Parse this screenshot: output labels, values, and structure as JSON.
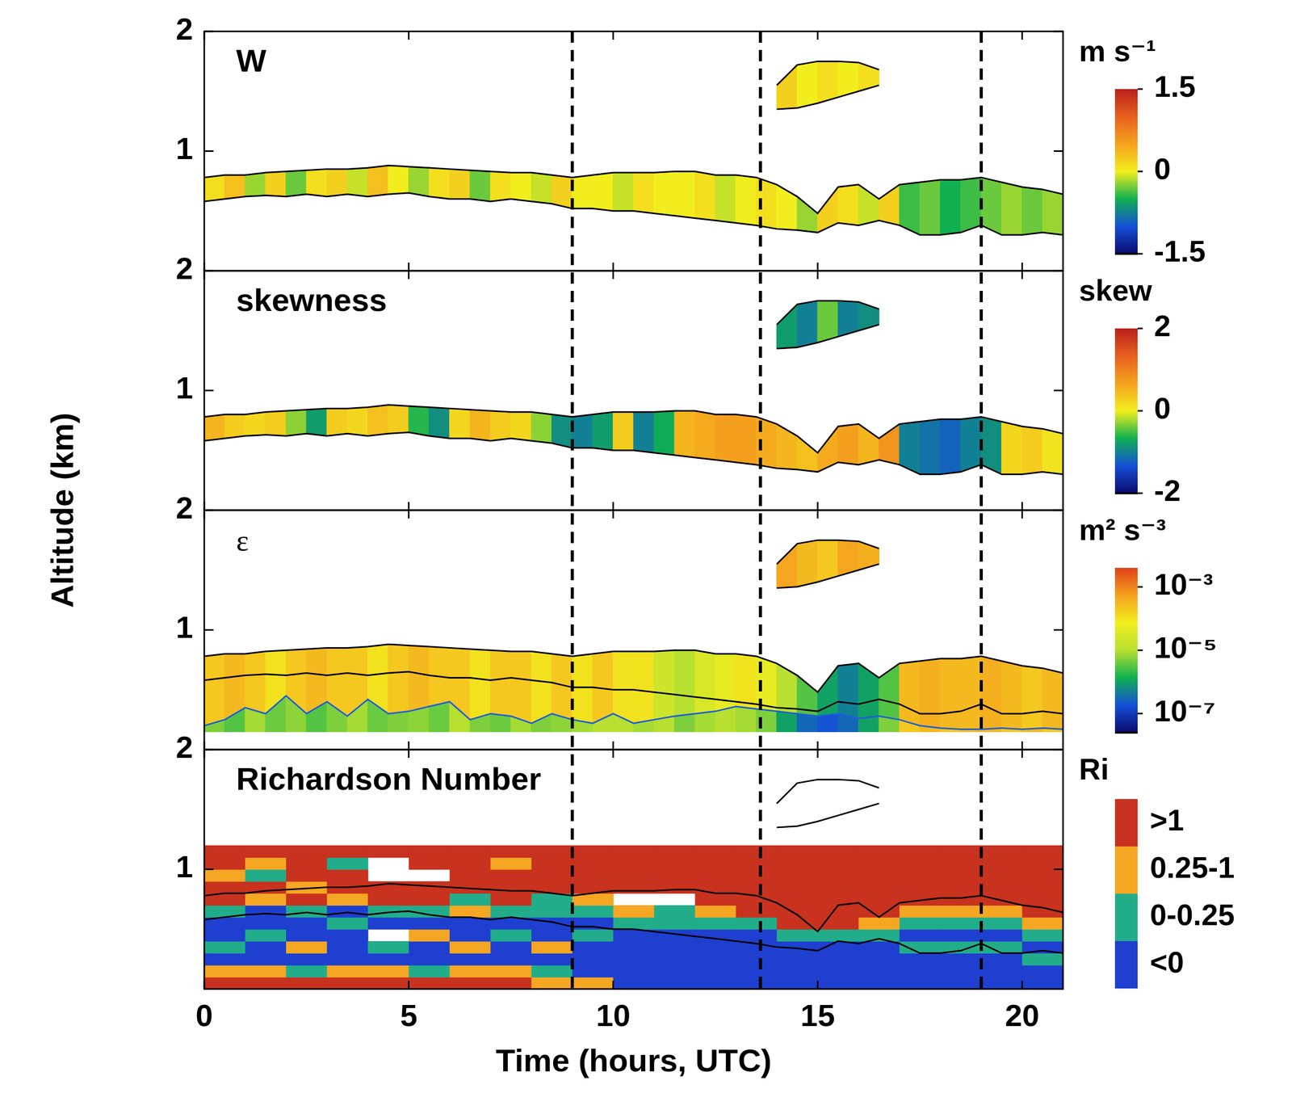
{
  "chart_data": {
    "type": "heatmap",
    "xlabel": "Time (hours, UTC)",
    "ylabel": "Altitude (km)",
    "xlim": [
      0,
      21
    ],
    "xticks": [
      0,
      5,
      10,
      15,
      20
    ],
    "ylim": [
      0,
      2
    ],
    "yticks": [
      1,
      2
    ],
    "vertical_lines": [
      9,
      13.6,
      19
    ],
    "x": [
      0,
      0.5,
      1,
      1.5,
      2,
      2.5,
      3,
      3.5,
      4,
      4.5,
      5,
      5.5,
      6,
      6.5,
      7,
      7.5,
      8,
      8.5,
      9,
      9.5,
      10,
      10.5,
      11,
      11.5,
      12,
      12.5,
      13,
      13.5,
      14,
      14.5,
      15,
      15.5,
      16,
      16.5,
      17,
      17.5,
      18,
      18.5,
      19,
      19.5,
      20,
      20.5,
      21
    ],
    "cloud_top": [
      0.78,
      0.8,
      0.8,
      0.82,
      0.83,
      0.84,
      0.85,
      0.85,
      0.86,
      0.88,
      0.87,
      0.86,
      0.85,
      0.84,
      0.83,
      0.82,
      0.82,
      0.8,
      0.78,
      0.8,
      0.82,
      0.82,
      0.82,
      0.83,
      0.83,
      0.8,
      0.8,
      0.78,
      0.72,
      0.62,
      0.48,
      0.7,
      0.72,
      0.6,
      0.72,
      0.74,
      0.76,
      0.76,
      0.78,
      0.74,
      0.7,
      0.68,
      0.64
    ],
    "cloud_base": [
      0.58,
      0.6,
      0.62,
      0.63,
      0.62,
      0.64,
      0.62,
      0.64,
      0.62,
      0.64,
      0.65,
      0.62,
      0.6,
      0.6,
      0.58,
      0.6,
      0.58,
      0.56,
      0.52,
      0.52,
      0.5,
      0.5,
      0.48,
      0.46,
      0.44,
      0.42,
      0.4,
      0.38,
      0.35,
      0.34,
      0.32,
      0.4,
      0.38,
      0.42,
      0.38,
      0.3,
      0.3,
      0.32,
      0.38,
      0.3,
      0.3,
      0.32,
      0.3
    ],
    "upper_cloud": {
      "x": [
        14,
        14.5,
        15,
        15.5,
        16,
        16.5
      ],
      "top": [
        1.55,
        1.72,
        1.75,
        1.75,
        1.74,
        1.68
      ],
      "base": [
        1.35,
        1.36,
        1.4,
        1.45,
        1.5,
        1.55
      ]
    },
    "panels": [
      {
        "title": "W",
        "type": "band",
        "colorbar": {
          "title": "m s⁻¹",
          "range": [
            -1.5,
            1.5
          ],
          "ticks": [
            1.5,
            0,
            -1.5
          ],
          "colors": [
            "#0a0a6e",
            "#1450d8",
            "#10b050",
            "#f2ee1e",
            "#f5a21e",
            "#e8601e",
            "#b8201a"
          ]
        },
        "values": [
          0.1,
          0.3,
          -0.2,
          0.2,
          -0.3,
          0.1,
          0.2,
          -0.1,
          0.3,
          0,
          -0.2,
          0.1,
          0.2,
          -0.3,
          0.1,
          0,
          -0.1,
          0.2,
          0,
          0,
          -0.1,
          0.1,
          0,
          0,
          0.1,
          -0.1,
          0,
          0.1,
          0,
          -0.2,
          0.2,
          0.1,
          -0.1,
          0.2,
          -0.4,
          -0.3,
          -0.5,
          -0.4,
          -0.3,
          -0.2,
          -0.3,
          -0.2
        ],
        "cloud_values": [
          0.2,
          0,
          0.1,
          0,
          0.1
        ]
      },
      {
        "title": "skewness",
        "type": "band",
        "colorbar": {
          "title": "skew",
          "range": [
            -2,
            2
          ],
          "ticks": [
            2,
            0,
            -2
          ],
          "colors": [
            "#0a0a6e",
            "#1450d8",
            "#10b050",
            "#f2ee1e",
            "#f5a21e",
            "#e8601e",
            "#b8201a"
          ]
        },
        "values": [
          0.5,
          0.3,
          0.2,
          0.3,
          -0.3,
          -0.8,
          0.3,
          0.2,
          0.4,
          0.3,
          -0.6,
          -0.9,
          0.2,
          0.5,
          0.3,
          0.2,
          -0.3,
          -0.9,
          -1,
          -0.8,
          0.3,
          -1,
          -0.7,
          0.5,
          0.6,
          0.7,
          0.7,
          0.6,
          0.5,
          0.4,
          0.6,
          0.7,
          0.5,
          0.8,
          -1,
          -1.1,
          -1.2,
          -1,
          -0.9,
          0.2,
          0.3,
          0.1
        ],
        "cloud_values": [
          -0.8,
          -1,
          -0.4,
          -1,
          -0.9
        ]
      },
      {
        "title": "ε",
        "type": "band",
        "colorbar": {
          "title": "m² s⁻³",
          "log": true,
          "range": [
            2.5e-08,
            0.004
          ],
          "ticks": [
            {
              "value": 0.001,
              "label": "10⁻³"
            },
            {
              "value": 1e-05,
              "label": "10⁻⁵"
            },
            {
              "value": 1e-07,
              "label": "10⁻⁷"
            }
          ],
          "colors": [
            "#0a0a6e",
            "#1450d8",
            "#10b050",
            "#b8e030",
            "#f2ee1e",
            "#f5a21e",
            "#e0401a"
          ]
        },
        "values": [
          0.0002,
          0.0003,
          0.0002,
          0.0001,
          0.0002,
          0.0003,
          0.0002,
          0.0002,
          0.0001,
          0.0002,
          0.0003,
          0.0002,
          0.0002,
          0.0001,
          0.0002,
          0.0002,
          0.0001,
          0.0002,
          0.0001,
          0.0002,
          0.0001,
          0.0001,
          2e-05,
          1e-05,
          3e-05,
          5e-05,
          0.0001,
          5e-05,
          1e-05,
          3e-06,
          1e-06,
          5e-07,
          1e-06,
          3e-06,
          0.0003,
          0.0004,
          0.0003,
          0.0003,
          0.0004,
          0.0003,
          0.0002,
          0.0003
        ],
        "lower_values": [
          5e-06,
          3e-06,
          8e-06,
          4e-06,
          6e-06,
          3e-06,
          5e-06,
          8e-06,
          4e-06,
          5e-06,
          6e-06,
          4e-06,
          1e-05,
          5e-06,
          4e-06,
          8e-06,
          5e-06,
          6e-06,
          8e-06,
          1e-05,
          1e-05,
          8e-06,
          1e-05,
          5e-06,
          8e-06,
          1e-05,
          8e-06,
          5e-06,
          1e-06,
          3e-07,
          2e-07,
          3e-07,
          1e-06,
          5e-06,
          0.0002,
          0.0003,
          0.0002,
          0.0003,
          0.0003,
          0.0002,
          0.0003,
          0.0002
        ],
        "line": [
          0.2,
          0.25,
          0.35,
          0.3,
          0.45,
          0.3,
          0.4,
          0.28,
          0.42,
          0.3,
          0.32,
          0.36,
          0.4,
          0.25,
          0.3,
          0.28,
          0.22,
          0.3,
          0.25,
          0.22,
          0.3,
          0.22,
          0.25,
          0.28,
          0.3,
          0.32,
          0.36,
          0.34,
          0.32,
          0.3,
          0.28,
          0.3,
          0.26,
          0.28,
          0.25,
          0.2,
          0.18,
          0.17,
          0.17,
          0.18,
          0.17,
          0.18,
          0.17
        ],
        "lidar_bottom": 0.15,
        "cloud_values": [
          0.0005,
          0.0003,
          0.0002,
          0.0005,
          0.0004
        ]
      },
      {
        "title": "Richardson Number",
        "type": "heatmap",
        "colorbar": {
          "title": "Ri",
          "labels": [
            ">1",
            "0.25-1",
            "0-0.25",
            "<0"
          ],
          "bounds": [
            1,
            0.25,
            0
          ],
          "colors": [
            "#c8321e",
            "#f5a623",
            "#22ad8a",
            "#1e3fd0"
          ]
        },
        "x_bins": [
          0,
          1,
          2,
          3,
          4,
          5,
          6,
          7,
          8,
          9,
          10,
          11,
          12,
          13,
          14,
          15,
          16,
          17,
          18,
          19,
          20,
          21
        ],
        "y_bins": [
          0,
          0.1,
          0.2,
          0.3,
          0.4,
          0.5,
          0.6,
          0.7,
          0.8,
          0.9,
          1,
          1.1,
          1.2
        ],
        "cells": [
          [
            2,
            0.5,
            -1,
            0.1,
            -1,
            -1,
            0.1,
            2,
            2,
            0.5,
            2,
            2
          ],
          [
            2,
            0.5,
            -1,
            -1,
            0.1,
            -1,
            -1,
            0.5,
            2,
            0.1,
            0.5,
            2
          ],
          [
            2,
            0.1,
            -1,
            0.5,
            -1,
            -1,
            0.1,
            2,
            0.5,
            2,
            2,
            2
          ],
          [
            2,
            0.5,
            -1,
            -1,
            -1,
            0.1,
            -1,
            0.5,
            2,
            2,
            0.1,
            2
          ],
          [
            2,
            0.5,
            -1,
            0.1,
            null,
            -1,
            0.1,
            2,
            2,
            null,
            null,
            2
          ],
          [
            2,
            0.1,
            -1,
            -1,
            0.5,
            -1,
            0.1,
            2,
            2,
            null,
            2,
            2
          ],
          [
            2,
            0.5,
            -1,
            0.5,
            -1,
            -1,
            0.5,
            0.1,
            2,
            2,
            2,
            2
          ],
          [
            2,
            0.5,
            -1,
            -1,
            0.1,
            -1,
            0.1,
            2,
            2,
            2,
            0.5,
            2
          ],
          [
            0.5,
            0.1,
            -1,
            0.5,
            -1,
            -1,
            0.1,
            0.1,
            2,
            2,
            2,
            2
          ],
          [
            0.5,
            -1,
            -1,
            -1,
            0.1,
            -1,
            0.1,
            0.5,
            2,
            2,
            2,
            2
          ],
          [
            -1,
            -1,
            -1,
            -1,
            -1,
            0.1,
            0.5,
            null,
            2,
            2,
            2,
            2
          ],
          [
            -1,
            -1,
            -1,
            -1,
            -1,
            0.1,
            0.1,
            null,
            2,
            2,
            2,
            2
          ],
          [
            -1,
            -1,
            -1,
            -1,
            -1,
            0.1,
            0.5,
            2,
            2,
            2,
            2,
            2
          ],
          [
            -1,
            -1,
            -1,
            -1,
            -1,
            0.1,
            2,
            2,
            2,
            2,
            2,
            2
          ],
          [
            -1,
            -1,
            -1,
            -1,
            0.1,
            2,
            2,
            2,
            2,
            2,
            2,
            2
          ],
          [
            -1,
            -1,
            -1,
            -1,
            0.1,
            2,
            2,
            2,
            2,
            2,
            2,
            2
          ],
          [
            -1,
            -1,
            -1,
            -1,
            0.1,
            0.5,
            2,
            2,
            2,
            2,
            2,
            2
          ],
          [
            -1,
            -1,
            -1,
            0.1,
            -1,
            0.1,
            0.5,
            2,
            2,
            2,
            2,
            2
          ],
          [
            -1,
            -1,
            -1,
            0.1,
            -1,
            0.1,
            0.5,
            2,
            2,
            2,
            2,
            2
          ],
          [
            -1,
            -1,
            -1,
            0.1,
            -1,
            0.1,
            0.5,
            2,
            2,
            2,
            2,
            2
          ],
          [
            -1,
            -1,
            0.1,
            -1,
            0.1,
            0.5,
            2,
            2,
            2,
            2,
            2,
            2
          ]
        ]
      }
    ]
  }
}
